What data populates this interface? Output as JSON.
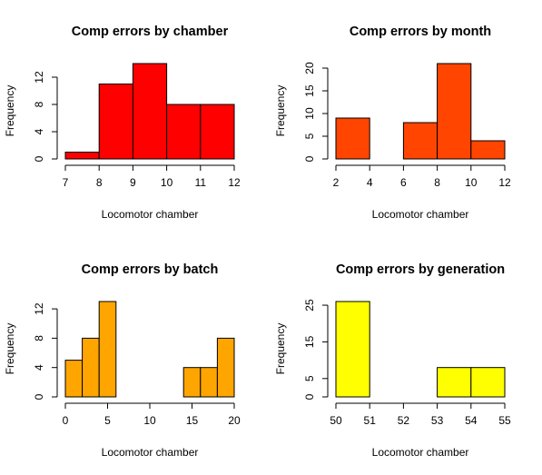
{
  "chart_data": [
    {
      "type": "histogram",
      "title": "Comp errors by chamber",
      "xlabel": "Locomotor chamber",
      "ylabel": "Frequency",
      "bins": [
        7,
        8,
        9,
        10,
        11,
        12
      ],
      "counts": [
        1,
        11,
        14,
        8,
        8
      ],
      "color": "#ff0000",
      "xlim": [
        7,
        12
      ],
      "xticks": [
        7,
        8,
        9,
        10,
        11,
        12
      ],
      "ylim": [
        0,
        14
      ],
      "yticks": [
        0,
        4,
        8,
        12
      ]
    },
    {
      "type": "histogram",
      "title": "Comp errors by month",
      "xlabel": "Locomotor chamber",
      "ylabel": "Frequency",
      "bins": [
        2,
        4,
        6,
        8,
        10,
        12
      ],
      "counts": [
        9,
        0,
        8,
        21,
        4
      ],
      "color": "#ff4500",
      "xlim": [
        2,
        12
      ],
      "xticks": [
        2,
        4,
        6,
        8,
        10,
        12
      ],
      "ylim": [
        0,
        21
      ],
      "yticks": [
        0,
        5,
        10,
        15,
        20
      ]
    },
    {
      "type": "histogram",
      "title": "Comp errors by batch",
      "xlabel": "Locomotor chamber",
      "ylabel": "Frequency",
      "bins": [
        0,
        2,
        4,
        6,
        8,
        10,
        12,
        14,
        16,
        18,
        20
      ],
      "counts": [
        5,
        8,
        13,
        0,
        0,
        0,
        0,
        4,
        4,
        8
      ],
      "color": "#ffa500",
      "xlim": [
        0,
        20
      ],
      "xticks": [
        0,
        5,
        10,
        15,
        20
      ],
      "ylim": [
        0,
        13
      ],
      "yticks": [
        0,
        4,
        8,
        12
      ]
    },
    {
      "type": "histogram",
      "title": "Comp errors by generation",
      "xlabel": "Locomotor chamber",
      "ylabel": "Frequency",
      "bins": [
        50,
        51,
        52,
        53,
        54,
        55
      ],
      "counts": [
        26,
        0,
        0,
        8,
        8
      ],
      "color": "#ffff00",
      "xlim": [
        50,
        55
      ],
      "xticks": [
        50,
        51,
        52,
        53,
        54,
        55
      ],
      "ylim": [
        0,
        26
      ],
      "yticks": [
        0,
        5,
        15,
        25
      ]
    }
  ]
}
